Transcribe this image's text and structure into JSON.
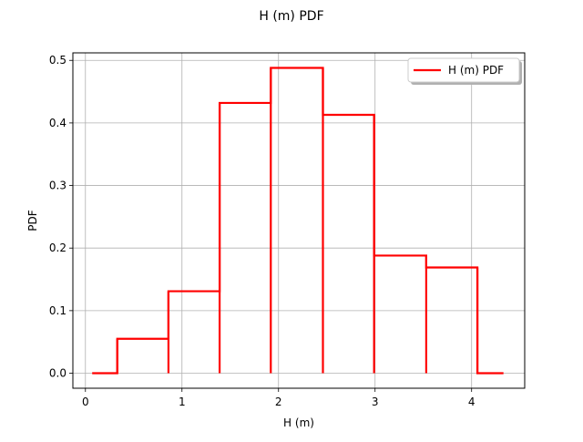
{
  "chart_data": {
    "type": "line",
    "style": "step histogram outline",
    "title": "H (m) PDF",
    "xlabel": "H (m)",
    "ylabel": "PDF",
    "xlim": [
      -0.13,
      4.55
    ],
    "ylim": [
      -0.024,
      0.512
    ],
    "xticks": [
      0,
      1,
      2,
      3,
      4
    ],
    "yticks": [
      0.0,
      0.1,
      0.2,
      0.3,
      0.4,
      0.5
    ],
    "xtick_labels": [
      "0",
      "1",
      "2",
      "3",
      "4"
    ],
    "ytick_labels": [
      "0.0",
      "0.1",
      "0.2",
      "0.3",
      "0.4",
      "0.5"
    ],
    "grid": true,
    "legend_position": "upper right",
    "series": [
      {
        "name": "H (m) PDF",
        "color": "#ff0000",
        "x": [
          0.07,
          0.33,
          0.33,
          0.86,
          0.86,
          1.39,
          1.39,
          1.92,
          1.92,
          2.46,
          2.46,
          2.99,
          2.99,
          3.53,
          3.53,
          4.06,
          4.06,
          4.33
        ],
        "y": [
          0.0,
          0.0,
          0.055,
          0.055,
          0.131,
          0.131,
          0.432,
          0.432,
          0.488,
          0.488,
          0.413,
          0.413,
          0.188,
          0.188,
          0.169,
          0.169,
          0.0,
          0.0
        ]
      }
    ],
    "vertical_edges": [
      {
        "x": 0.33,
        "y": 0.055
      },
      {
        "x": 0.86,
        "y": 0.131
      },
      {
        "x": 1.39,
        "y": 0.432
      },
      {
        "x": 1.92,
        "y": 0.488
      },
      {
        "x": 2.46,
        "y": 0.488
      },
      {
        "x": 2.99,
        "y": 0.413
      },
      {
        "x": 3.53,
        "y": 0.188
      },
      {
        "x": 4.06,
        "y": 0.169
      }
    ]
  }
}
